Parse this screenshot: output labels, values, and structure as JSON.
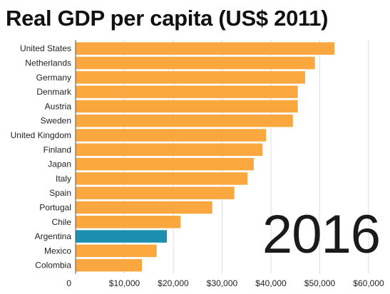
{
  "chart_data": {
    "type": "bar",
    "orientation": "horizontal",
    "title": "Real GDP per capita (US$ 2011)",
    "year": "2016",
    "categories": [
      "United States",
      "Netherlands",
      "Germany",
      "Denmark",
      "Austria",
      "Sweden",
      "United Kingdom",
      "Finland",
      "Japan",
      "Italy",
      "Spain",
      "Portugal",
      "Chile",
      "Argentina",
      "Mexico",
      "Colombia"
    ],
    "values": [
      53000,
      49000,
      47000,
      45500,
      45500,
      44500,
      39000,
      38300,
      36500,
      35200,
      32500,
      28000,
      21500,
      18700,
      16600,
      13600
    ],
    "xlim": [
      0,
      60000
    ],
    "x_ticks": [
      0,
      10000,
      20000,
      30000,
      40000,
      50000,
      60000
    ],
    "x_tick_labels": [
      "0",
      "$10,000",
      "$20,000",
      "$30,000",
      "$40,000",
      "$50,000",
      "$60,000"
    ],
    "grid": true,
    "colors": {
      "default_bar": "#f9a73e",
      "highlight_bar": "#1c8fb0",
      "grid": "#dddddd",
      "axis": "#555555"
    },
    "highlight": "Argentina"
  }
}
